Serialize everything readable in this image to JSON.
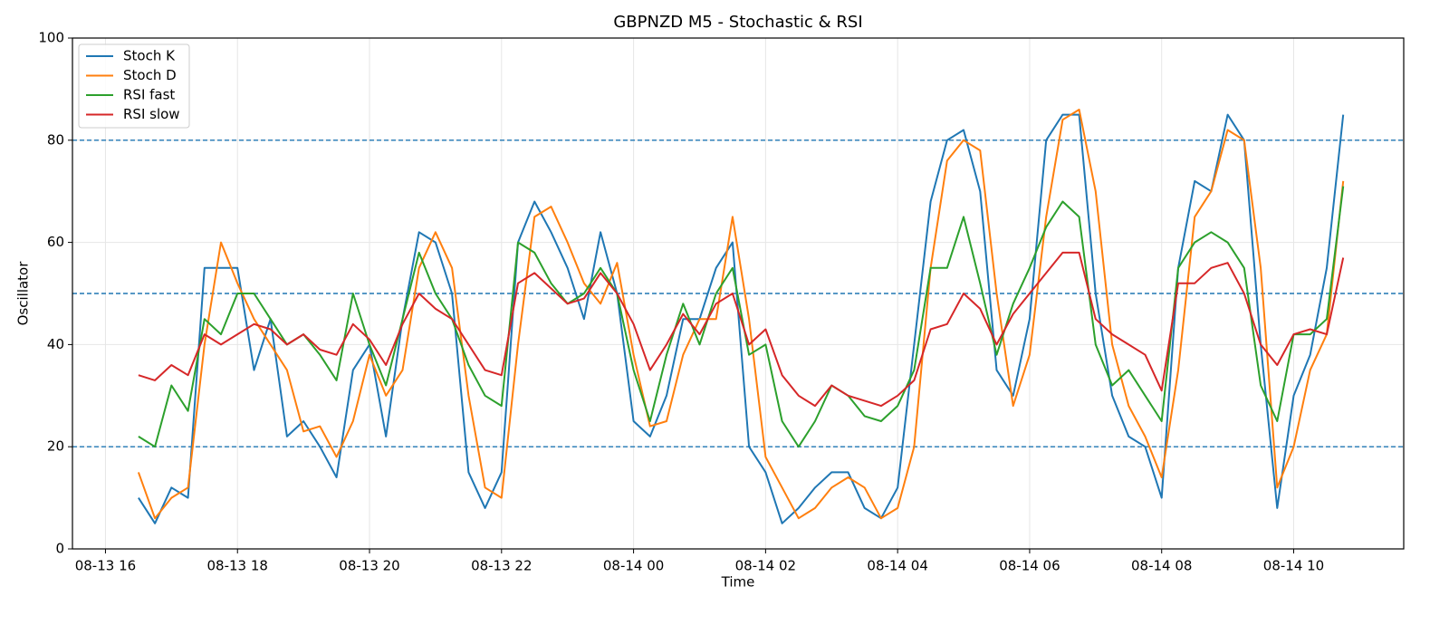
{
  "chart_data": {
    "type": "line",
    "title": "GBPNZD M5 - Stochastic & RSI",
    "x_label": "Time",
    "y_label": "Oscillator",
    "x": [
      "08-13 16:30",
      "08-13 16:45",
      "08-13 17:00",
      "08-13 17:15",
      "08-13 17:30",
      "08-13 17:45",
      "08-13 18:00",
      "08-13 18:15",
      "08-13 18:30",
      "08-13 18:45",
      "08-13 19:00",
      "08-13 19:15",
      "08-13 19:30",
      "08-13 19:45",
      "08-13 20:00",
      "08-13 20:15",
      "08-13 20:30",
      "08-13 20:45",
      "08-13 21:00",
      "08-13 21:15",
      "08-13 21:30",
      "08-13 21:45",
      "08-13 22:00",
      "08-13 22:15",
      "08-13 22:30",
      "08-13 22:45",
      "08-13 23:00",
      "08-13 23:15",
      "08-13 23:30",
      "08-13 23:45",
      "08-14 00:00",
      "08-14 00:15",
      "08-14 00:30",
      "08-14 00:45",
      "08-14 01:00",
      "08-14 01:15",
      "08-14 01:30",
      "08-14 01:45",
      "08-14 02:00",
      "08-14 02:15",
      "08-14 02:30",
      "08-14 02:45",
      "08-14 03:00",
      "08-14 03:15",
      "08-14 03:30",
      "08-14 03:45",
      "08-14 04:00",
      "08-14 04:15",
      "08-14 04:30",
      "08-14 04:45",
      "08-14 05:00",
      "08-14 05:15",
      "08-14 05:30",
      "08-14 05:45",
      "08-14 06:00",
      "08-14 06:15",
      "08-14 06:30",
      "08-14 06:45",
      "08-14 07:00",
      "08-14 07:15",
      "08-14 07:30",
      "08-14 07:45",
      "08-14 08:00",
      "08-14 08:15",
      "08-14 08:30",
      "08-14 08:45",
      "08-14 09:00",
      "08-14 09:15",
      "08-14 09:30",
      "08-14 09:45",
      "08-14 10:00",
      "08-14 10:15",
      "08-14 10:30",
      "08-14 10:45"
    ],
    "series": [
      {
        "name": "Stoch K",
        "color": "#1f77b4",
        "values": [
          10,
          5,
          12,
          10,
          55,
          55,
          55,
          35,
          45,
          22,
          25,
          20,
          14,
          35,
          40,
          22,
          45,
          62,
          60,
          50,
          15,
          8,
          15,
          60,
          68,
          62,
          55,
          45,
          62,
          50,
          25,
          22,
          30,
          45,
          45,
          55,
          60,
          20,
          15,
          5,
          8,
          12,
          15,
          15,
          8,
          6,
          12,
          40,
          68,
          80,
          82,
          70,
          35,
          30,
          45,
          80,
          85,
          85,
          50,
          30,
          22,
          20,
          10,
          55,
          72,
          70,
          85,
          80,
          40,
          8,
          30,
          38,
          55,
          85
        ]
      },
      {
        "name": "Stoch D",
        "color": "#ff7f0e",
        "values": [
          15,
          6,
          10,
          12,
          40,
          60,
          52,
          45,
          40,
          35,
          23,
          24,
          18,
          25,
          38,
          30,
          35,
          55,
          62,
          55,
          30,
          12,
          10,
          40,
          65,
          67,
          60,
          52,
          48,
          56,
          38,
          24,
          25,
          38,
          45,
          45,
          65,
          45,
          18,
          12,
          6,
          8,
          12,
          14,
          12,
          6,
          8,
          20,
          55,
          76,
          80,
          78,
          50,
          28,
          38,
          65,
          84,
          86,
          70,
          40,
          28,
          22,
          14,
          35,
          65,
          70,
          82,
          80,
          55,
          12,
          20,
          35,
          42,
          72
        ]
      },
      {
        "name": "RSI fast",
        "color": "#2ca02c",
        "values": [
          22,
          20,
          32,
          27,
          45,
          42,
          50,
          50,
          45,
          40,
          42,
          38,
          33,
          50,
          40,
          32,
          45,
          58,
          50,
          45,
          36,
          30,
          28,
          60,
          58,
          52,
          48,
          50,
          55,
          50,
          35,
          25,
          38,
          48,
          40,
          50,
          55,
          38,
          40,
          25,
          20,
          25,
          32,
          30,
          26,
          25,
          28,
          35,
          55,
          55,
          65,
          52,
          38,
          48,
          55,
          63,
          68,
          65,
          40,
          32,
          35,
          30,
          25,
          55,
          60,
          62,
          60,
          55,
          32,
          25,
          42,
          42,
          45,
          71
        ]
      },
      {
        "name": "RSI slow",
        "color": "#d62728",
        "values": [
          34,
          33,
          36,
          34,
          42,
          40,
          42,
          44,
          43,
          40,
          42,
          39,
          38,
          44,
          41,
          36,
          44,
          50,
          47,
          45,
          40,
          35,
          34,
          52,
          54,
          51,
          48,
          49,
          54,
          50,
          44,
          35,
          40,
          46,
          42,
          48,
          50,
          40,
          43,
          34,
          30,
          28,
          32,
          30,
          29,
          28,
          30,
          33,
          43,
          44,
          50,
          47,
          40,
          46,
          50,
          54,
          58,
          58,
          45,
          42,
          40,
          38,
          31,
          52,
          52,
          55,
          56,
          50,
          40,
          36,
          42,
          43,
          42,
          57
        ]
      }
    ],
    "xlim": [
      "08-13 15:30",
      "08-14 11:40"
    ],
    "xticks": [
      {
        "value": "08-13 16:00",
        "label": "08-13 16"
      },
      {
        "value": "08-13 18:00",
        "label": "08-13 18"
      },
      {
        "value": "08-13 20:00",
        "label": "08-13 20"
      },
      {
        "value": "08-13 22:00",
        "label": "08-13 22"
      },
      {
        "value": "08-14 00:00",
        "label": "08-14 00"
      },
      {
        "value": "08-14 02:00",
        "label": "08-14 02"
      },
      {
        "value": "08-14 04:00",
        "label": "08-14 04"
      },
      {
        "value": "08-14 06:00",
        "label": "08-14 06"
      },
      {
        "value": "08-14 08:00",
        "label": "08-14 08"
      },
      {
        "value": "08-14 10:00",
        "label": "08-14 10"
      }
    ],
    "ylim": [
      0,
      100
    ],
    "yticks": [
      0,
      20,
      40,
      60,
      80,
      100
    ],
    "hlines": [
      20,
      50,
      80
    ],
    "hline_color": "#1f77b4",
    "grid": true,
    "legend": "upper left"
  }
}
